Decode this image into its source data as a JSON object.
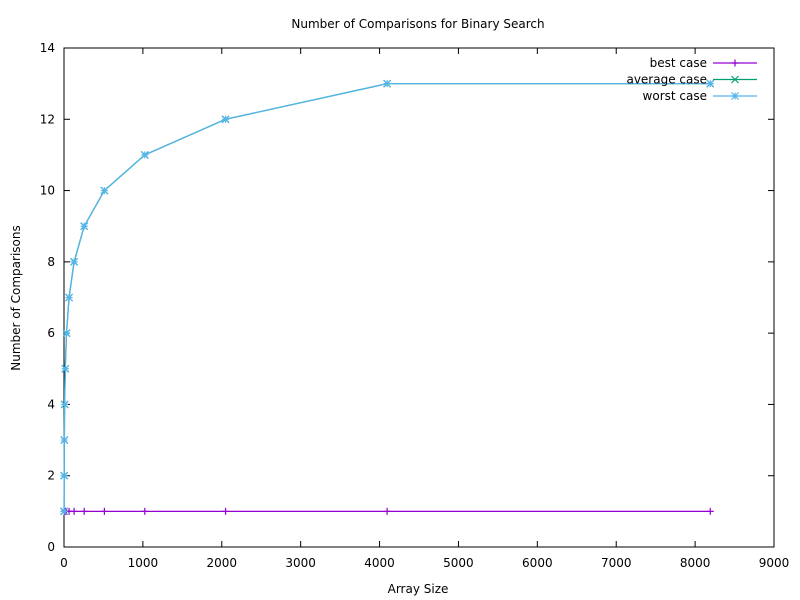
{
  "chart_data": {
    "type": "line",
    "title": "Number of Comparisons for Binary Search",
    "xlabel": "Array Size",
    "ylabel": "Number of Comparisons",
    "xlim": [
      0,
      9000
    ],
    "ylim": [
      0,
      14
    ],
    "xticks": [
      0,
      1000,
      2000,
      3000,
      4000,
      5000,
      6000,
      7000,
      8000,
      9000
    ],
    "yticks": [
      0,
      2,
      4,
      6,
      8,
      10,
      12,
      14
    ],
    "grid": false,
    "legend_position": "top-right",
    "x": [
      1,
      2,
      4,
      8,
      16,
      32,
      64,
      128,
      256,
      512,
      1024,
      2048,
      4096,
      8192
    ],
    "series": [
      {
        "name": "best case",
        "color": "#9400d3",
        "marker": "plus",
        "values": [
          1,
          1,
          1,
          1,
          1,
          1,
          1,
          1,
          1,
          1,
          1,
          1,
          1,
          1
        ]
      },
      {
        "name": "average case",
        "color": "#009e73",
        "marker": "cross",
        "values": [
          1,
          2,
          3,
          4,
          5,
          6,
          7,
          8,
          9,
          10,
          11,
          12,
          13,
          13
        ]
      },
      {
        "name": "worst case",
        "color": "#56b4e9",
        "marker": "star",
        "values": [
          1,
          2,
          3,
          4,
          5,
          6,
          7,
          8,
          9,
          10,
          11,
          12,
          13,
          13
        ]
      }
    ]
  }
}
